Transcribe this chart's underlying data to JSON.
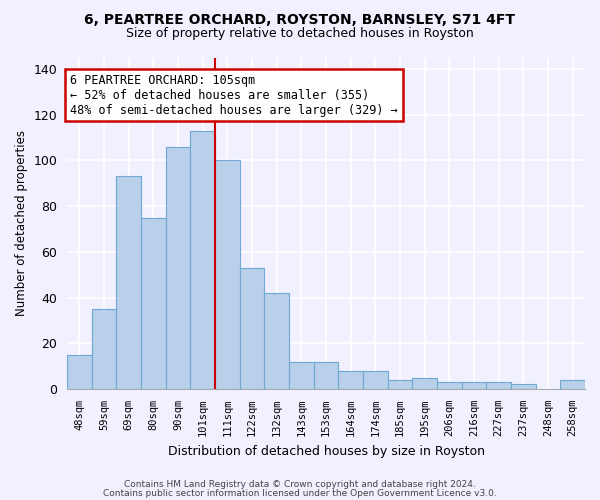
{
  "title": "6, PEARTREE ORCHARD, ROYSTON, BARNSLEY, S71 4FT",
  "subtitle": "Size of property relative to detached houses in Royston",
  "xlabel": "Distribution of detached houses by size in Royston",
  "ylabel": "Number of detached properties",
  "bar_labels": [
    "48sqm",
    "59sqm",
    "69sqm",
    "80sqm",
    "90sqm",
    "101sqm",
    "111sqm",
    "122sqm",
    "132sqm",
    "143sqm",
    "153sqm",
    "164sqm",
    "174sqm",
    "185sqm",
    "195sqm",
    "206sqm",
    "216sqm",
    "227sqm",
    "237sqm",
    "248sqm",
    "258sqm"
  ],
  "bar_values": [
    15,
    35,
    93,
    75,
    106,
    113,
    100,
    53,
    42,
    12,
    12,
    8,
    8,
    4,
    5,
    3,
    3,
    3,
    2,
    0,
    4
  ],
  "bar_color": "#b8d0ea",
  "bar_edge_color": "#6fa8d4",
  "vline_x": 5.5,
  "vline_color": "#cc0000",
  "annotation_title": "6 PEARTREE ORCHARD: 105sqm",
  "annotation_line1": "← 52% of detached houses are smaller (355)",
  "annotation_line2": "48% of semi-detached houses are larger (329) →",
  "annotation_box_color": "#ffffff",
  "annotation_box_edge_color": "#cc0000",
  "ylim": [
    0,
    145
  ],
  "yticks": [
    0,
    20,
    40,
    60,
    80,
    100,
    120,
    140
  ],
  "footer1": "Contains HM Land Registry data © Crown copyright and database right 2024.",
  "footer2": "Contains public sector information licensed under the Open Government Licence v3.0.",
  "bg_color": "#f0f0ff"
}
